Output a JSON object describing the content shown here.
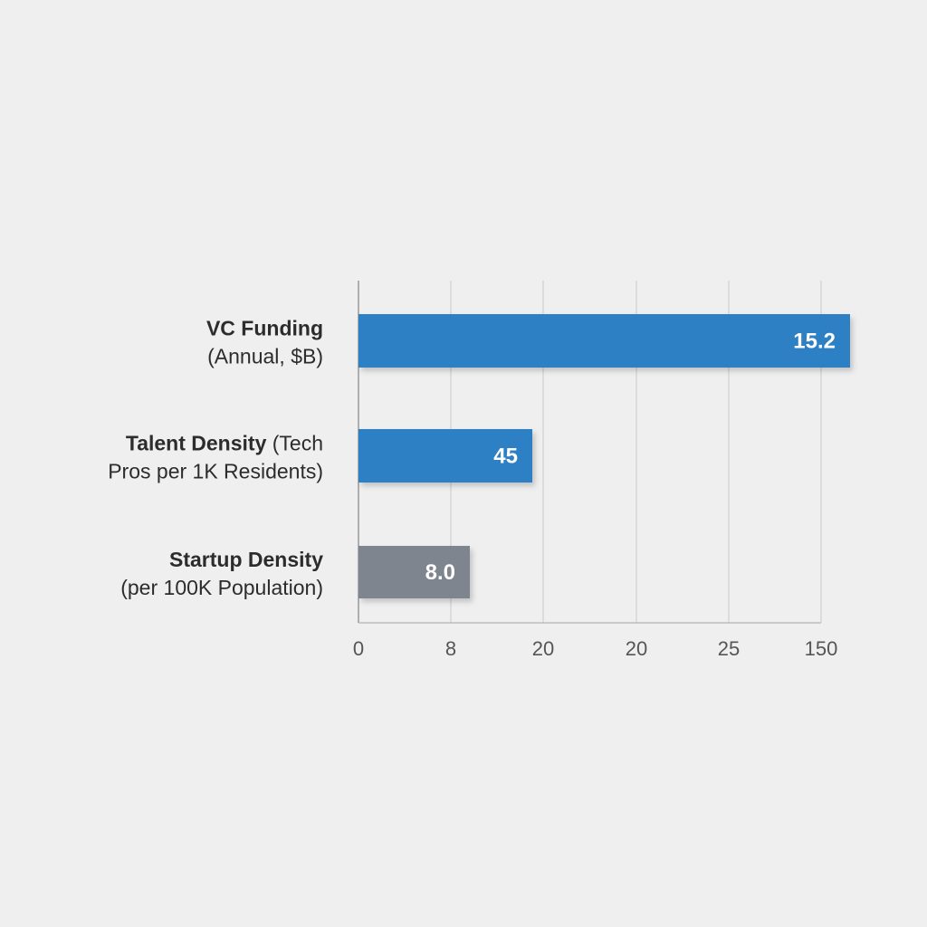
{
  "chart_data": {
    "type": "bar",
    "orientation": "horizontal",
    "title": "",
    "xlabel": "",
    "ylabel": "",
    "categories": [
      {
        "bold": "VC Funding",
        "rest": "",
        "line2": "(Annual, $B)"
      },
      {
        "bold": "Talent Density",
        "rest": " (Tech",
        "line2": "Pros per 1K Residents)"
      },
      {
        "bold": "Startup Density",
        "rest": "",
        "line2": "(per 100K Population)"
      }
    ],
    "values": [
      15.2,
      45,
      8.0
    ],
    "value_labels": [
      "15.2",
      "45",
      "8.0"
    ],
    "bar_colors": [
      "#2f80c4",
      "#2f80c4",
      "#7e858f"
    ],
    "x_tick_labels": [
      "0",
      "8",
      "20",
      "20",
      "25",
      "150"
    ],
    "grid": true,
    "legend": "none"
  }
}
